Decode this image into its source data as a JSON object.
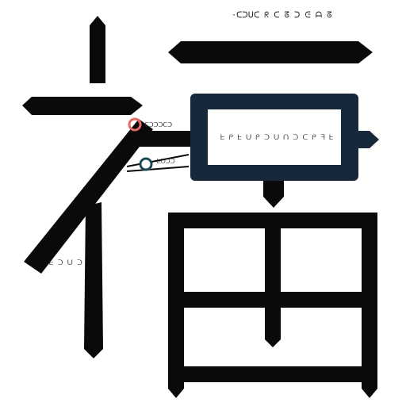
{
  "texts": {
    "top_caption": "·ᑕᑐᑌᑕ ᖇ ᑕ ᘔ ᑐ ᕮ ᗩ ᘔ",
    "box_text": "ᖶ ᑭ ᖶ ᑌ ᑭ ᑐ ᑌ ᑎ ᑐ ᑕ ᑭ ᖷ ᖶ",
    "red_tag": "ᑕᑐᑐᑐᑕᑐ",
    "teal_tag": "ᖶᑌᑐᑐ",
    "left_tag": "ᖶ ᑐ ᑌ ᑐ"
  },
  "colors": {
    "stroke": "#0a0a0a",
    "panel_border": "#17283a",
    "panel_fill": "#ffffff",
    "red_accent": "#e66a68",
    "teal_accent": "#1a4a54"
  },
  "icons": [
    "red-node-icon",
    "teal-node-icon"
  ]
}
